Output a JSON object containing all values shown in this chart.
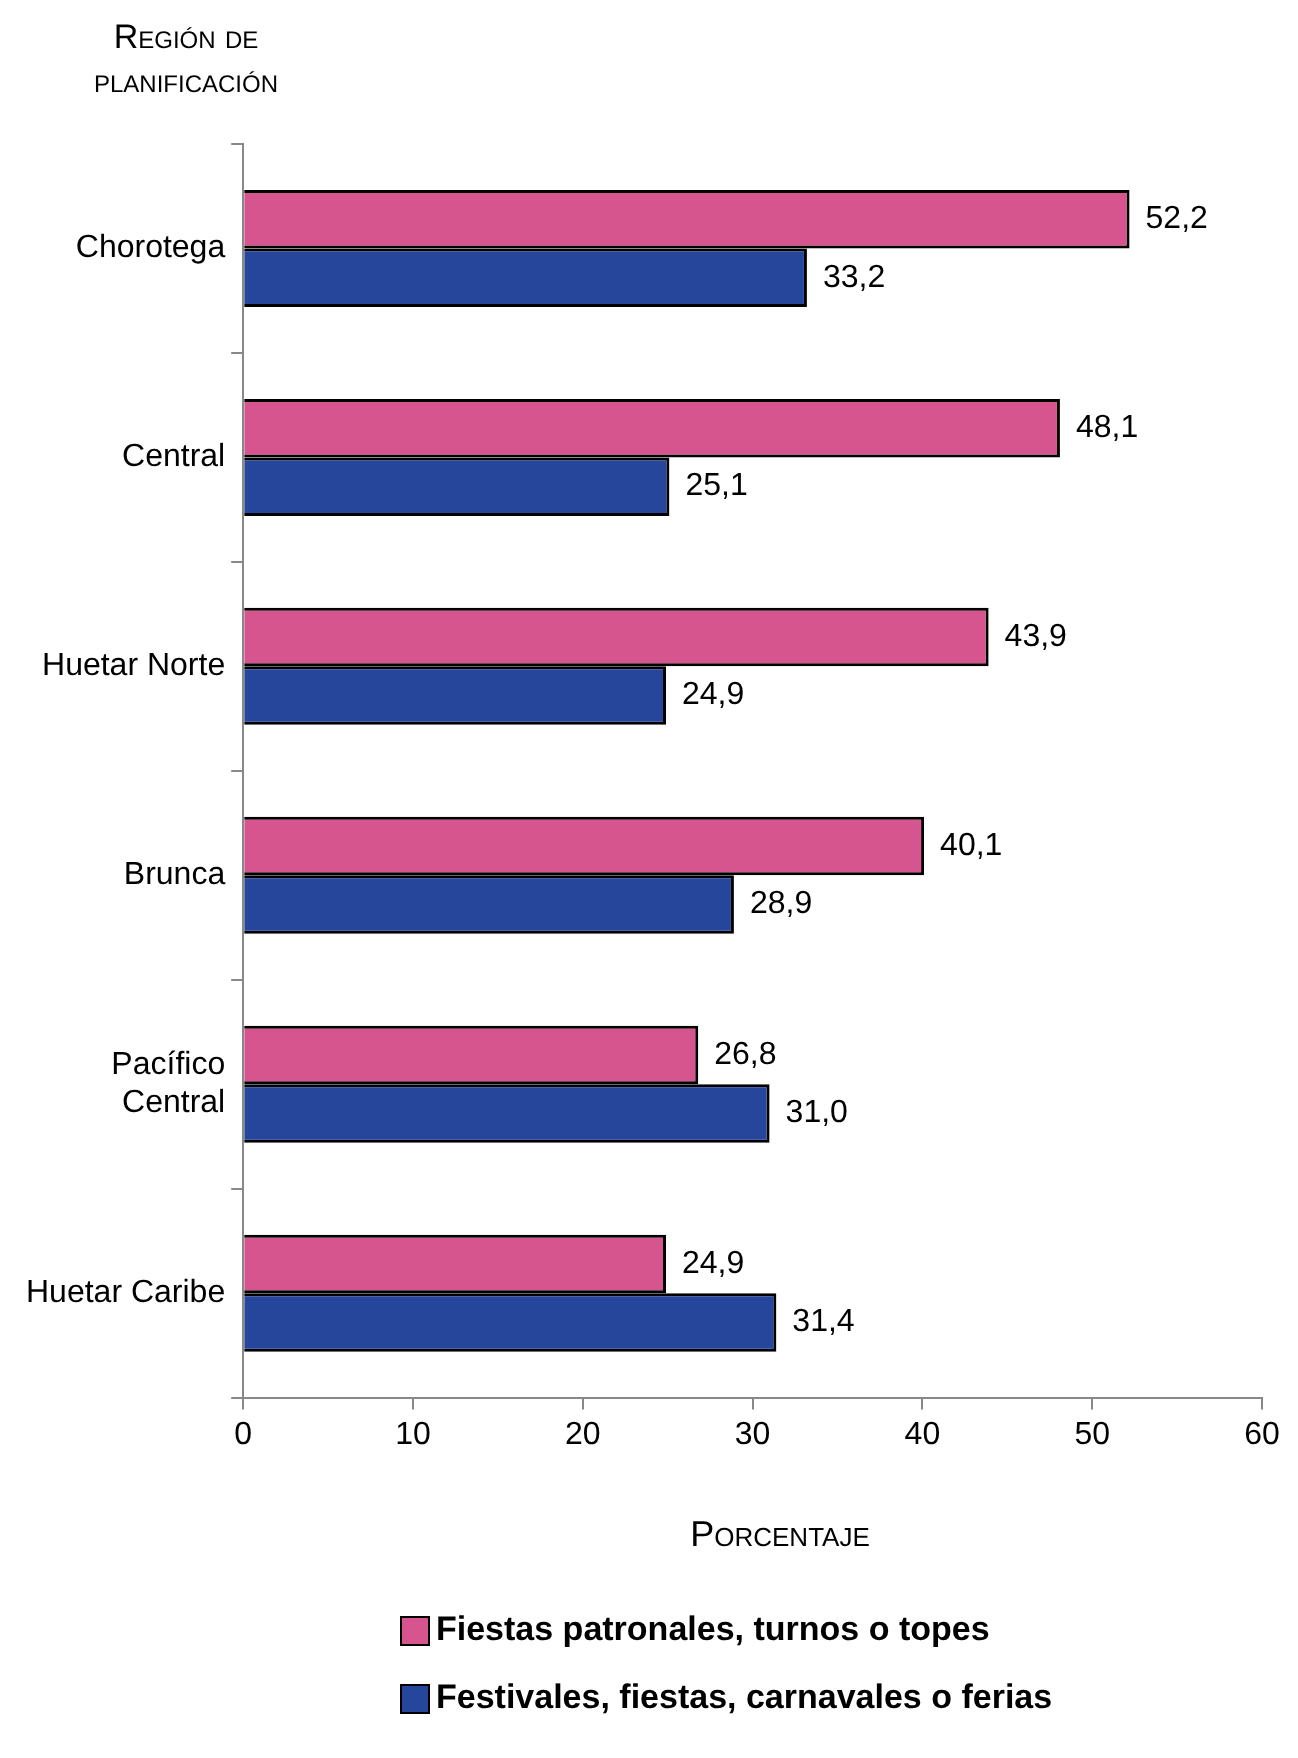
{
  "chart_data": {
    "type": "bar",
    "orientation": "horizontal",
    "ylabel": "Región de planificación",
    "xlabel": "Porcentaje",
    "categories": [
      "Chorotega",
      "Central",
      "Huetar Norte",
      "Brunca",
      "Pacífico Central",
      "Huetar Caribe"
    ],
    "series": [
      {
        "name": "Fiestas patronales, turnos o topes",
        "color": "#d6558f",
        "values": [
          52.2,
          48.1,
          43.9,
          40.1,
          26.8,
          24.9
        ],
        "value_labels": [
          "52,2",
          "48,1",
          "43,9",
          "40,1",
          "26,8",
          "24,9"
        ]
      },
      {
        "name": "Festivales, fiestas, carnavales o ferias",
        "color": "#26469c",
        "values": [
          33.2,
          25.1,
          24.9,
          28.9,
          31.0,
          31.4
        ],
        "value_labels": [
          "33,2",
          "25,1",
          "24,9",
          "28,9",
          "31,0",
          "31,4"
        ]
      }
    ],
    "xlim": [
      0,
      60
    ],
    "xticks": [
      0,
      10,
      20,
      30,
      40,
      50,
      60
    ],
    "grid": false,
    "legend": "bottom"
  }
}
